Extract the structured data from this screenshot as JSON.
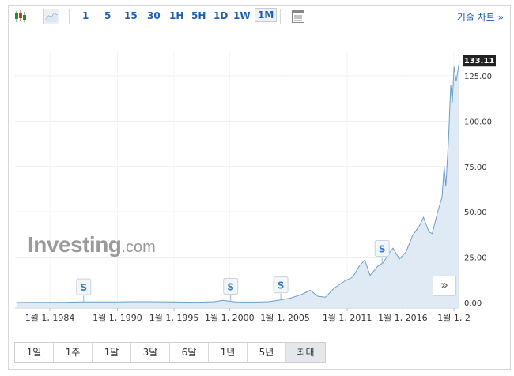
{
  "toolbar": {
    "candle_icon": "candlestick-icon",
    "area_icon": "area-chart-icon",
    "intervals": [
      "1",
      "5",
      "15",
      "30",
      "1H",
      "5H",
      "1D",
      "1W",
      "1M"
    ],
    "active_interval": "1M",
    "table_icon": "table-icon",
    "tech_chart_label": "기술 차트 »"
  },
  "watermark": {
    "brand": "Investing",
    "suffix": ".com"
  },
  "nav_arrow": "»",
  "range_buttons": [
    "1일",
    "1주",
    "1달",
    "3달",
    "6달",
    "1년",
    "5년",
    "최대"
  ],
  "active_range": "최대",
  "split_marker_label": "S",
  "split_markers": [
    1987.0,
    2000.5,
    2005.1,
    2014.4
  ],
  "current_price_label": "133.11",
  "colors": {
    "line": "#6d9ec9",
    "fill": "#dbe8f3",
    "price_tag_bg": "#222222",
    "accent": "#1f5fb3"
  },
  "chart_data": {
    "type": "area",
    "xlabel": "",
    "ylabel": "",
    "x_ticks": [
      "1월 1, 1984",
      "1월 1, 1990",
      "1월 1, 1995",
      "1월 1, 2000",
      "1월 1, 2005",
      "1월 1, 2011",
      "1월 1, 2016",
      "1월 1, 2"
    ],
    "y_ticks": [
      "0.00",
      "25.00",
      "50.00",
      "75.00",
      "100.00",
      "125.00"
    ],
    "ylim": [
      -3,
      138
    ],
    "xlim": [
      1980.7,
      2021.5
    ],
    "grid": true,
    "series": [
      {
        "x": [
          1980.9,
          1983,
          1985,
          1987,
          1988,
          1990,
          1991.5,
          1993,
          1995,
          1996,
          1997.5,
          1999,
          1999.8,
          2000.2,
          2000.6,
          2001,
          2002,
          2003,
          2004,
          2005,
          2006,
          2007,
          2007.8,
          2008.5,
          2009.2,
          2010,
          2011,
          2011.7,
          2012.3,
          2012.8,
          2013.3,
          2014,
          2014.5,
          2015,
          2015.4,
          2016,
          2016.6,
          2017.2,
          2017.8,
          2018.2,
          2018.7,
          2019,
          2019.5,
          2019.9,
          2020.1,
          2020.25,
          2020.5,
          2020.7,
          2020.85,
          2021,
          2021.2,
          2021.5
        ],
        "y": [
          0.1,
          0.15,
          0.12,
          0.4,
          0.35,
          0.4,
          0.5,
          0.5,
          0.35,
          0.3,
          0.2,
          0.5,
          1.2,
          0.9,
          0.6,
          0.35,
          0.3,
          0.3,
          0.5,
          1.4,
          2.5,
          4.5,
          6.8,
          3.5,
          3.0,
          8,
          12,
          14,
          20,
          23.5,
          15,
          20,
          22,
          27,
          30,
          24,
          28,
          37,
          42,
          47,
          39,
          38,
          50,
          58,
          75,
          64,
          90,
          120,
          110,
          130,
          122,
          133.11
        ]
      }
    ]
  }
}
